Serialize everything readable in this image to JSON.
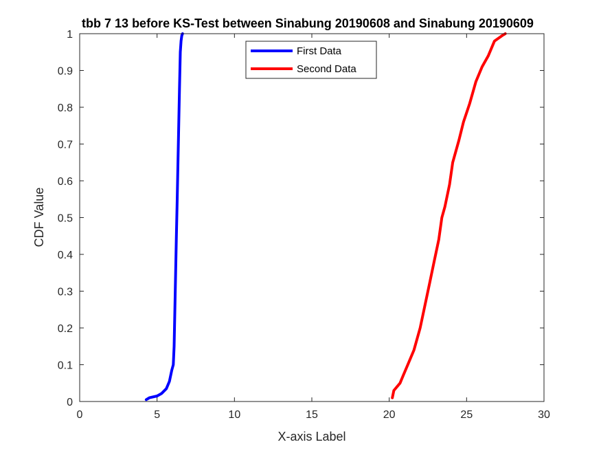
{
  "chart_data": {
    "type": "line",
    "title": "tbb 7 13 before KS-Test between Sinabung 20190608 and Sinabung 20190609",
    "xlabel": "X-axis Label",
    "ylabel": "CDF Value",
    "xlim": [
      0,
      30
    ],
    "ylim": [
      0,
      1
    ],
    "xticks": [
      0,
      5,
      10,
      15,
      20,
      25,
      30
    ],
    "yticks": [
      0,
      0.1,
      0.2,
      0.3,
      0.4,
      0.5,
      0.6,
      0.7,
      0.8,
      0.9,
      1
    ],
    "xtick_labels": [
      "0",
      "5",
      "10",
      "15",
      "20",
      "25",
      "30"
    ],
    "ytick_labels": [
      "0",
      "0.1",
      "0.2",
      "0.3",
      "0.4",
      "0.5",
      "0.6",
      "0.7",
      "0.8",
      "0.9",
      "1"
    ],
    "grid": false,
    "legend_position": "top-center",
    "series": [
      {
        "name": "First Data",
        "color": "#0000ff",
        "x": [
          4.3,
          4.5,
          5.0,
          5.3,
          5.6,
          5.8,
          5.95,
          6.05,
          6.1,
          6.15,
          6.2,
          6.25,
          6.3,
          6.35,
          6.4,
          6.45,
          6.5,
          6.55,
          6.6,
          6.65
        ],
        "y": [
          0.005,
          0.01,
          0.015,
          0.022,
          0.035,
          0.055,
          0.085,
          0.1,
          0.15,
          0.25,
          0.35,
          0.45,
          0.55,
          0.65,
          0.75,
          0.85,
          0.95,
          0.98,
          0.995,
          1.0
        ]
      },
      {
        "name": "Second Data",
        "color": "#ff0000",
        "x": [
          20.2,
          20.3,
          20.7,
          20.9,
          21.2,
          21.6,
          22.0,
          22.3,
          22.6,
          22.9,
          23.2,
          23.4,
          23.6,
          23.9,
          24.1,
          24.5,
          24.8,
          25.2,
          25.6,
          26.0,
          26.4,
          26.8,
          27.3,
          27.5
        ],
        "y": [
          0.01,
          0.03,
          0.05,
          0.07,
          0.1,
          0.14,
          0.2,
          0.26,
          0.32,
          0.38,
          0.44,
          0.5,
          0.53,
          0.59,
          0.65,
          0.71,
          0.76,
          0.81,
          0.87,
          0.91,
          0.94,
          0.98,
          0.995,
          1.0
        ]
      }
    ]
  }
}
